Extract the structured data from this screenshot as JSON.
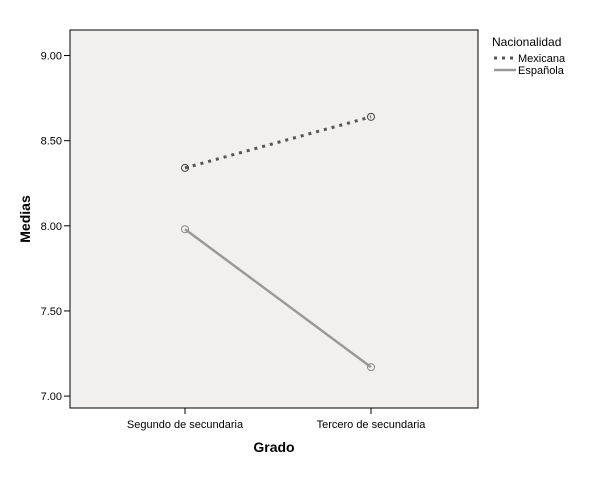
{
  "chart_data": {
    "type": "line",
    "categories": [
      "Segundo de secundaria",
      "Tercero de secundaria"
    ],
    "series": [
      {
        "name": "Mexicana",
        "values": [
          8.34,
          8.64
        ],
        "style": "dotted",
        "color": "#555555"
      },
      {
        "name": "Española",
        "values": [
          7.98,
          7.17
        ],
        "style": "solid",
        "color": "#999999"
      }
    ],
    "xlabel": "Grado",
    "ylabel": "Medias",
    "ylim": [
      6.93,
      9.15
    ],
    "yticks": [
      "9.00",
      "8.50",
      "8.00",
      "7.50",
      "7.00"
    ],
    "legend_title": "Nacionalidad",
    "legend_position": "top-right",
    "plot_background": "#f2f0ee",
    "grid": false
  }
}
